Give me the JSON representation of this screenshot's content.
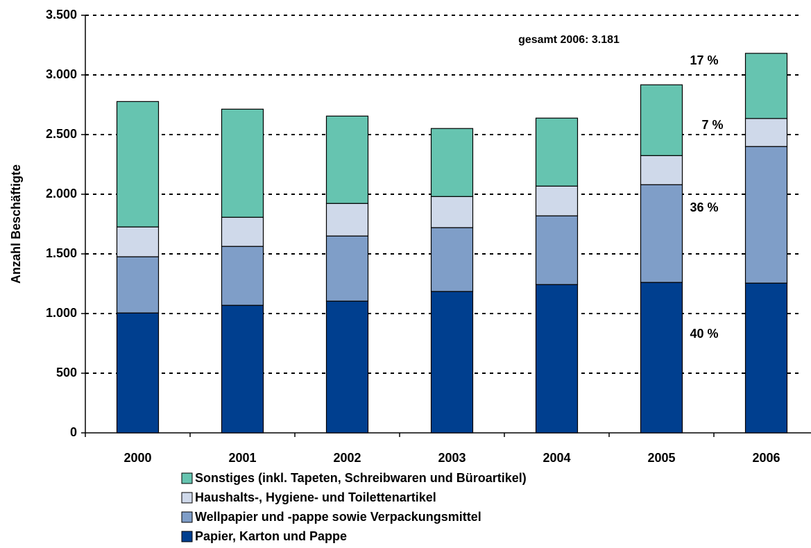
{
  "chart_data": {
    "type": "stacked_bar",
    "y_label": "Anzahl Beschäftigte",
    "categories": [
      "2000",
      "2001",
      "2002",
      "2003",
      "2004",
      "2005",
      "2006"
    ],
    "series": [
      {
        "name": "Papier, Karton und Pappe",
        "color": "#003f8f",
        "values": [
          1005,
          1069,
          1104,
          1185,
          1243,
          1261,
          1255
        ]
      },
      {
        "name": "Wellpapier und -pappe sowie Verpackungsmittel",
        "color": "#7f9ec8",
        "values": [
          471,
          494,
          546,
          535,
          576,
          819,
          1145
        ]
      },
      {
        "name": "Haushalts-, Hygiene- und Toilettenartikel",
        "color": "#cfd9ea",
        "values": [
          250,
          244,
          273,
          261,
          249,
          244,
          235
        ]
      },
      {
        "name": "Sonstiges (inkl. Tapeten, Schreibwaren und Büroartikel)",
        "color": "#66c4b0",
        "values": [
          1051,
          906,
          732,
          570,
          570,
          593,
          546
        ]
      }
    ],
    "annotations": [
      "gesamt 2006: 3.181",
      "17 %",
      "7 %",
      "36 %",
      "40 %"
    ],
    "ylim": [
      0,
      3500
    ],
    "yticks": [
      0,
      {
        "value": 500,
        "label": "500"
      },
      {
        "value": 1000,
        "label": "1.000"
      },
      {
        "value": 1500,
        "label": "1.500"
      },
      {
        "value": 2000,
        "label": "2.000"
      },
      {
        "value": 2500,
        "label": "2.500"
      },
      {
        "value": 3000,
        "label": "3.000"
      },
      {
        "value": 3500,
        "label": "3.500"
      }
    ],
    "grid": true,
    "legend": "bottom"
  }
}
